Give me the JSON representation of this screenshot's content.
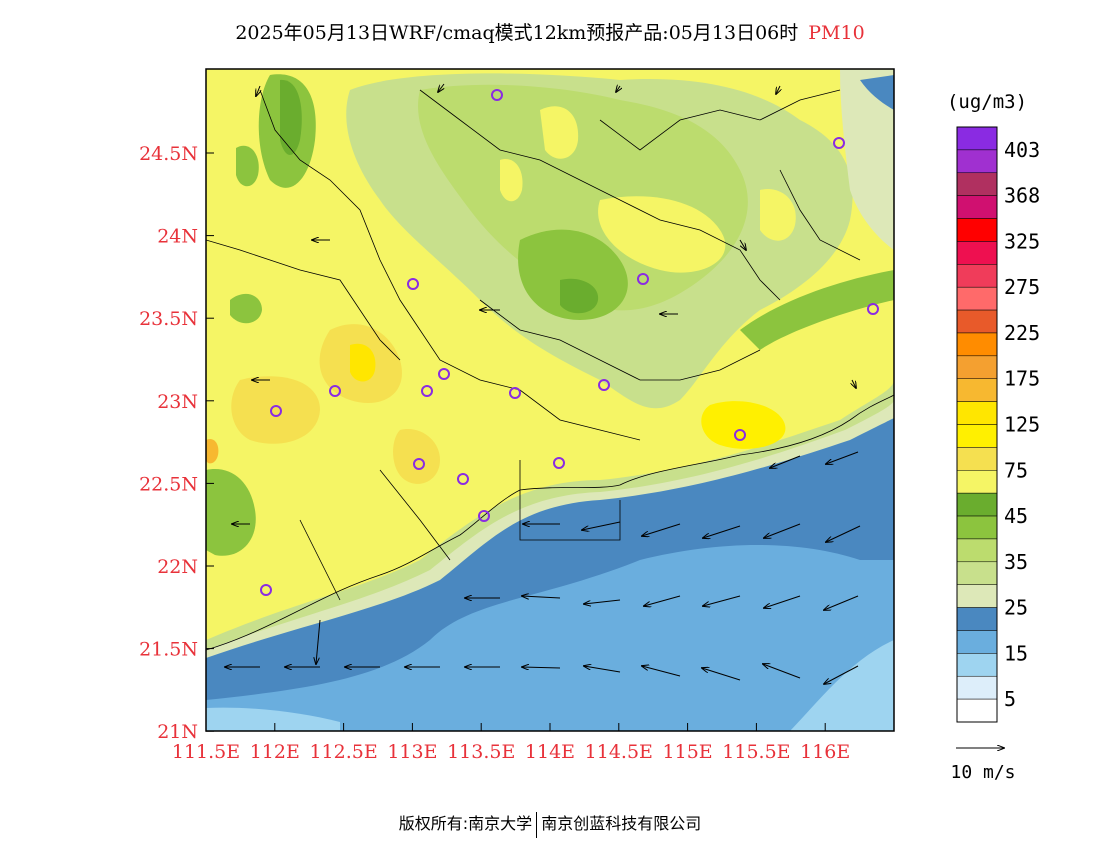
{
  "title": {
    "main": "2025年05月13日WRF/cmaq模式12km预报产品:05月13日06时",
    "pollutant": "PM10"
  },
  "map": {
    "x_labels": [
      "111.5E",
      "112E",
      "112.5E",
      "113E",
      "113.5E",
      "114E",
      "114.5E",
      "115E",
      "115.5E",
      "116E"
    ],
    "y_labels": [
      "24.5N",
      "24N",
      "23.5N",
      "23N",
      "22.5N",
      "22N",
      "21.5N",
      "21N"
    ],
    "label_color": "#e8323a"
  },
  "legend": {
    "unit": "(ug/m3)",
    "labels": [
      "403",
      "368",
      "325",
      "275",
      "225",
      "175",
      "125",
      "75",
      "45",
      "35",
      "25",
      "15",
      "5"
    ],
    "colors": [
      "#8a2be2",
      "#a030d0",
      "#b03060",
      "#d01070",
      "#ff0000",
      "#ee1050",
      "#f03c5a",
      "#ff6a6a",
      "#e85a2a",
      "#ff8c00",
      "#f4a030",
      "#f7b830",
      "#ffe600",
      "#fff000",
      "#f5e050",
      "#f5f565",
      "#6aad2e",
      "#8cc43e",
      "#bcdc6e",
      "#c8e08c",
      "#dde8b8",
      "#4a88c0",
      "#6aaede",
      "#9ed4f0",
      "#ddeefa",
      "#ffffff"
    ]
  },
  "vector_legend": {
    "label": "10 m/s"
  },
  "footer": {
    "left": "版权所有:南京大学",
    "right": "南京创蓝科技有限公司"
  }
}
